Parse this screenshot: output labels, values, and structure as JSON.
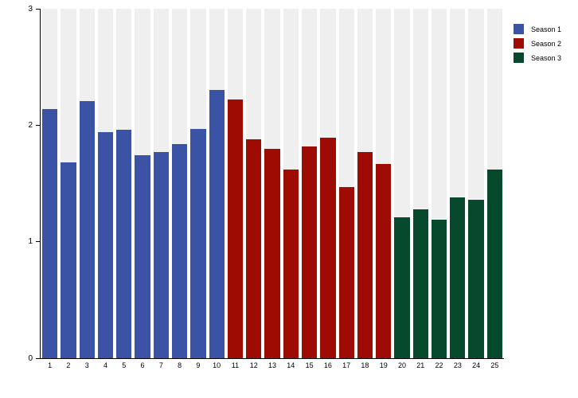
{
  "chart_data": {
    "type": "bar",
    "categories": [
      "1",
      "2",
      "3",
      "4",
      "5",
      "6",
      "7",
      "8",
      "9",
      "10",
      "11",
      "12",
      "13",
      "14",
      "15",
      "16",
      "17",
      "18",
      "19",
      "20",
      "21",
      "22",
      "23",
      "24",
      "25"
    ],
    "series": [
      {
        "name": "Season 1",
        "color": "#3A53A4",
        "x": [
          1,
          2,
          3,
          4,
          5,
          6,
          7,
          8,
          9,
          10
        ],
        "values": [
          2.14,
          1.68,
          2.21,
          1.94,
          1.96,
          1.74,
          1.77,
          1.84,
          1.97,
          2.3
        ]
      },
      {
        "name": "Season 2",
        "color": "#9E0B02",
        "x": [
          11,
          12,
          13,
          14,
          15,
          16,
          17,
          18,
          19
        ],
        "values": [
          2.22,
          1.88,
          1.8,
          1.62,
          1.82,
          1.89,
          1.47,
          1.77,
          1.67
        ]
      },
      {
        "name": "Season 3",
        "color": "#06492D",
        "x": [
          20,
          21,
          22,
          23,
          24,
          25
        ],
        "values": [
          1.21,
          1.28,
          1.19,
          1.38,
          1.36,
          1.62
        ]
      }
    ],
    "ylim": [
      0,
      3
    ],
    "yticks": [
      0,
      1,
      2,
      3
    ],
    "grid": "column-bands",
    "band_color": "#EFEFEF",
    "legend_position": "top-right"
  }
}
